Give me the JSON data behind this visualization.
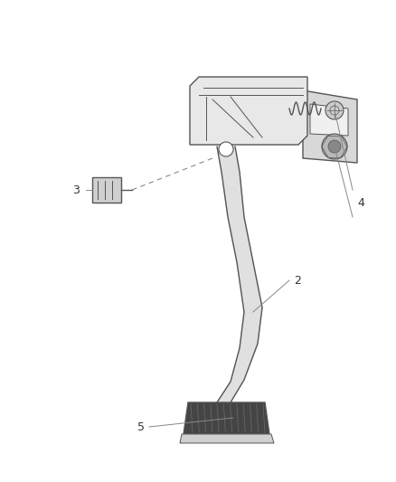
{
  "bg_color": "#ffffff",
  "line_color": "#555555",
  "dark_color": "#333333",
  "light_gray": "#888888",
  "figsize": [
    4.38,
    5.33
  ],
  "dpi": 100,
  "label_fs": 9
}
